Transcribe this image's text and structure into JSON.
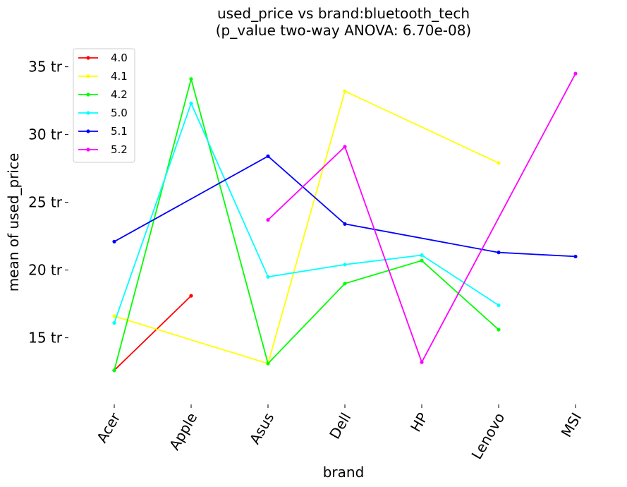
{
  "chart_data": {
    "type": "line",
    "title_line1": "used_price vs brand:bluetooth_tech",
    "title_line2": "(p_value two-way ANOVA: 6.70e-08)",
    "xlabel": "brand",
    "ylabel": "mean of used_price",
    "categories": [
      "Acer",
      "Apple",
      "Asus",
      "Dell",
      "HP",
      "Lenovo",
      "MSI"
    ],
    "ylim": [
      10.5,
      36.7
    ],
    "yticks": [
      {
        "value": 15,
        "label": "15 tr"
      },
      {
        "value": 20,
        "label": "20 tr"
      },
      {
        "value": 25,
        "label": "25 tr"
      },
      {
        "value": 30,
        "label": "30 tr"
      },
      {
        "value": 35,
        "label": "35 tr"
      }
    ],
    "grid": false,
    "legend_position": "top-left",
    "series": [
      {
        "name": "4.0",
        "color": "#ff0000",
        "values": [
          12.6,
          18.1,
          null,
          null,
          null,
          null,
          null
        ]
      },
      {
        "name": "4.1",
        "color": "#ffff00",
        "values": [
          16.6,
          null,
          13.1,
          33.2,
          null,
          27.9,
          null
        ]
      },
      {
        "name": "4.2",
        "color": "#00ff00",
        "values": [
          12.6,
          34.1,
          13.1,
          19.0,
          20.7,
          15.6,
          null
        ]
      },
      {
        "name": "5.0",
        "color": "#00ffff",
        "values": [
          16.1,
          32.3,
          19.5,
          20.4,
          21.1,
          17.4,
          null
        ]
      },
      {
        "name": "5.1",
        "color": "#0000ff",
        "values": [
          22.1,
          null,
          28.4,
          23.4,
          null,
          21.3,
          21.0
        ]
      },
      {
        "name": "5.2",
        "color": "#ff00ff",
        "values": [
          null,
          null,
          23.7,
          29.1,
          13.2,
          null,
          34.5
        ]
      }
    ]
  }
}
